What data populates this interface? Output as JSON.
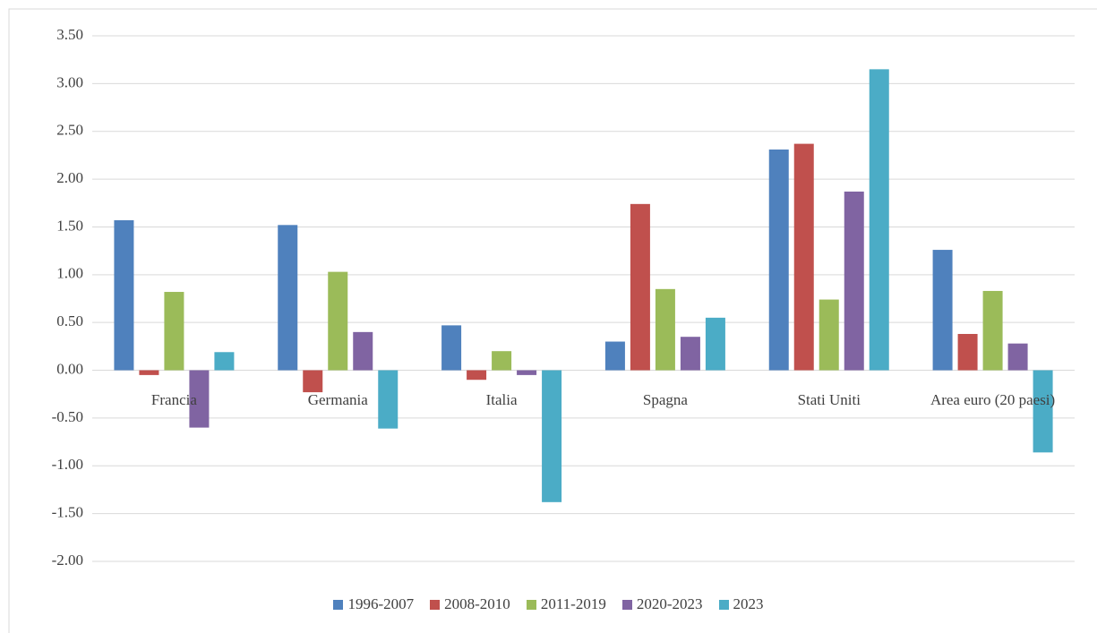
{
  "chart_data": {
    "type": "bar",
    "categories": [
      "Francia",
      "Germania",
      "Italia",
      "Spagna",
      "Stati Uniti",
      "Area euro (20 paesi)"
    ],
    "series": [
      {
        "name": "1996-2007",
        "color": "#4f81bd",
        "values": [
          1.57,
          1.52,
          0.47,
          0.3,
          2.31,
          1.26
        ]
      },
      {
        "name": "2008-2010",
        "color": "#c0504d",
        "values": [
          -0.05,
          -0.23,
          -0.1,
          1.74,
          2.37,
          0.38
        ]
      },
      {
        "name": "2011-2019",
        "color": "#9bbb59",
        "values": [
          0.82,
          1.03,
          0.2,
          0.85,
          0.74,
          0.83
        ]
      },
      {
        "name": "2020-2023",
        "color": "#8064a2",
        "values": [
          -0.6,
          0.4,
          -0.05,
          0.35,
          1.87,
          0.28
        ]
      },
      {
        "name": "2023",
        "color": "#4bacc6",
        "values": [
          0.19,
          -0.61,
          -1.38,
          0.55,
          3.15,
          -0.86
        ]
      }
    ],
    "ylim": [
      -2,
      3.5
    ],
    "yticks": [
      {
        "value": -2,
        "label": "-2.00"
      },
      {
        "value": -1.5,
        "label": "-1.50"
      },
      {
        "value": -1,
        "label": "-1.00"
      },
      {
        "value": -0.5,
        "label": "-0.50"
      },
      {
        "value": 0,
        "label": "0.00"
      },
      {
        "value": 0.5,
        "label": "0.50"
      },
      {
        "value": 1,
        "label": "1.00"
      },
      {
        "value": 1.5,
        "label": "1.50"
      },
      {
        "value": 2,
        "label": "2.00"
      },
      {
        "value": 2.5,
        "label": "2.50"
      },
      {
        "value": 3,
        "label": "3.00"
      },
      {
        "value": 3.5,
        "label": "3.50"
      }
    ],
    "grid": true,
    "legend": "bottom"
  }
}
